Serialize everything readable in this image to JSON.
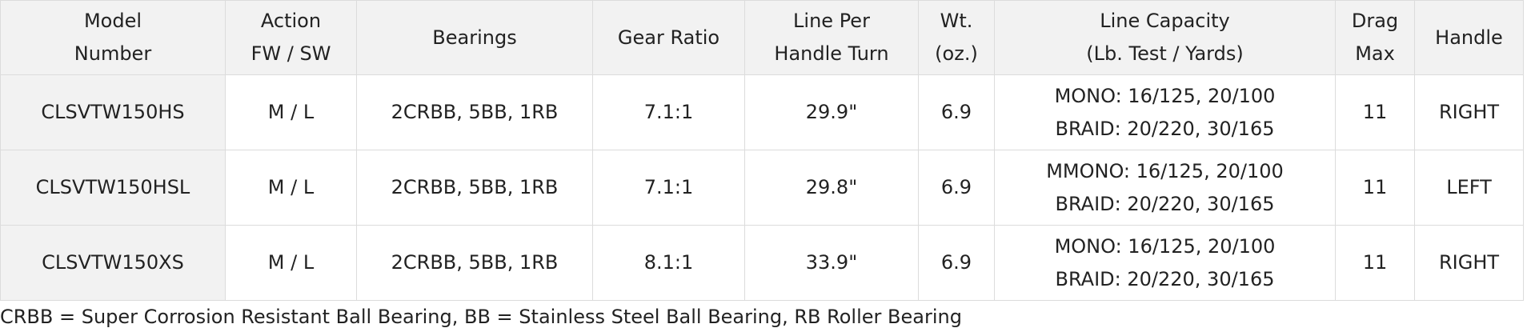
{
  "table": {
    "headers": [
      [
        "Model",
        "Number"
      ],
      [
        "Action",
        "FW / SW"
      ],
      [
        "Bearings"
      ],
      [
        "Gear Ratio"
      ],
      [
        "Line Per",
        "Handle Turn"
      ],
      [
        "Wt.",
        "(oz.)"
      ],
      [
        "Line Capacity",
        "(Lb. Test / Yards)"
      ],
      [
        "Drag",
        "Max"
      ],
      [
        "Handle"
      ]
    ],
    "rows": [
      [
        [
          "CLSVTW150HS"
        ],
        [
          "M / L"
        ],
        [
          "2CRBB, 5BB, 1RB"
        ],
        [
          "7.1:1"
        ],
        [
          "29.9\""
        ],
        [
          "6.9"
        ],
        [
          "MONO: 16/125, 20/100",
          "BRAID: 20/220, 30/165"
        ],
        [
          "11"
        ],
        [
          "RIGHT"
        ]
      ],
      [
        [
          "CLSVTW150HSL"
        ],
        [
          "M / L"
        ],
        [
          "2CRBB, 5BB, 1RB"
        ],
        [
          "7.1:1"
        ],
        [
          "29.8\""
        ],
        [
          "6.9"
        ],
        [
          "MMONO: 16/125, 20/100",
          "BRAID: 20/220, 30/165"
        ],
        [
          "11"
        ],
        [
          "LEFT"
        ]
      ],
      [
        [
          "CLSVTW150XS"
        ],
        [
          "M / L"
        ],
        [
          "2CRBB, 5BB, 1RB"
        ],
        [
          "8.1:1"
        ],
        [
          "33.9\""
        ],
        [
          "6.9"
        ],
        [
          "MONO: 16/125, 20/100",
          "BRAID: 20/220, 30/165"
        ],
        [
          "11"
        ],
        [
          "RIGHT"
        ]
      ]
    ]
  },
  "footnote": "CRBB = Super Corrosion Resistant Ball Bearing, BB = Stainless Steel Ball Bearing, RB Roller Bearing"
}
